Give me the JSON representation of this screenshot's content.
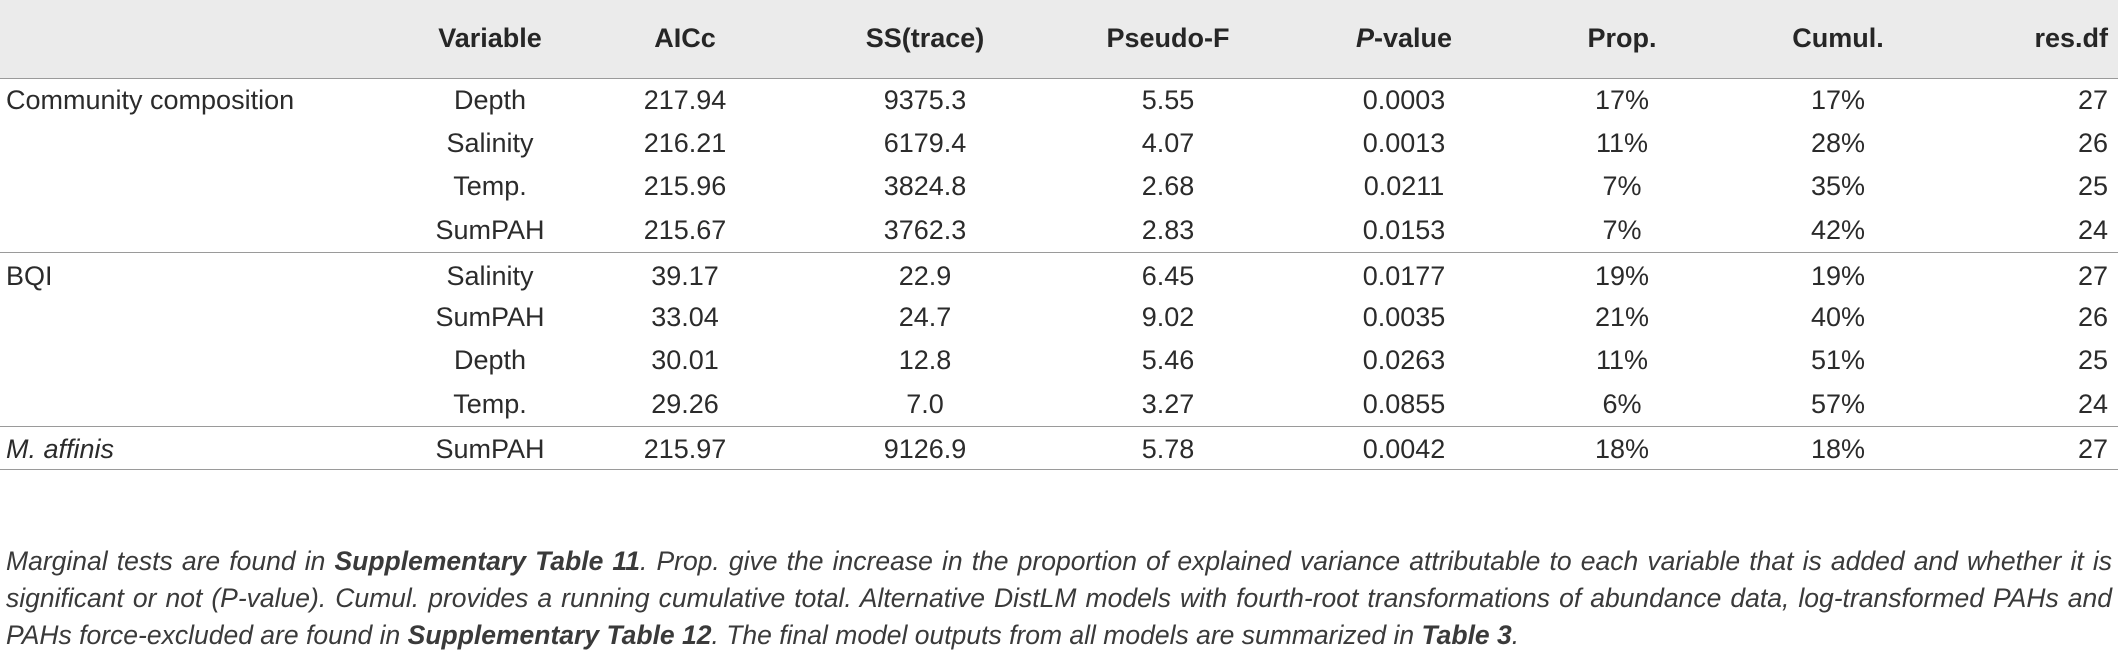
{
  "table": {
    "headers": {
      "group": "",
      "variable": "Variable",
      "aicc": "AICc",
      "ss": "SS(trace)",
      "pseudo_f": "Pseudo-F",
      "p_value_italic": "P",
      "p_value_rest": "-value",
      "prop": "Prop.",
      "cumul": "Cumul.",
      "res_df": "res.df"
    },
    "groups": [
      {
        "label": "Community composition",
        "rows": [
          {
            "variable": "Depth",
            "aicc": "217.94",
            "ss": "9375.3",
            "pseudo_f": "5.55",
            "p": "0.0003",
            "prop": "17%",
            "cumul": "17%",
            "res_df": "27"
          },
          {
            "variable": "Salinity",
            "aicc": "216.21",
            "ss": "6179.4",
            "pseudo_f": "4.07",
            "p": "0.0013",
            "prop": "11%",
            "cumul": "28%",
            "res_df": "26"
          },
          {
            "variable": "Temp.",
            "aicc": "215.96",
            "ss": "3824.8",
            "pseudo_f": "2.68",
            "p": "0.0211",
            "prop": "7%",
            "cumul": "35%",
            "res_df": "25"
          },
          {
            "variable": "SumPAH",
            "aicc": "215.67",
            "ss": "3762.3",
            "pseudo_f": "2.83",
            "p": "0.0153",
            "prop": "7%",
            "cumul": "42%",
            "res_df": "24"
          }
        ]
      },
      {
        "label": "BQI",
        "rows": [
          {
            "variable": "Salinity",
            "aicc": "39.17",
            "ss": "22.9",
            "pseudo_f": "6.45",
            "p": "0.0177",
            "prop": "19%",
            "cumul": "19%",
            "res_df": "27"
          },
          {
            "variable": "SumPAH",
            "aicc": "33.04",
            "ss": "24.7",
            "pseudo_f": "9.02",
            "p": "0.0035",
            "prop": "21%",
            "cumul": "40%",
            "res_df": "26"
          },
          {
            "variable": "Depth",
            "aicc": "30.01",
            "ss": "12.8",
            "pseudo_f": "5.46",
            "p": "0.0263",
            "prop": "11%",
            "cumul": "51%",
            "res_df": "25"
          },
          {
            "variable": "Temp.",
            "aicc": "29.26",
            "ss": "7.0",
            "pseudo_f": "3.27",
            "p": "0.0855",
            "prop": "6%",
            "cumul": "57%",
            "res_df": "24"
          }
        ]
      },
      {
        "label": "M. affinis",
        "rows": [
          {
            "variable": "SumPAH",
            "aicc": "215.97",
            "ss": "9126.9",
            "pseudo_f": "5.78",
            "p": "0.0042",
            "prop": "18%",
            "cumul": "18%",
            "res_df": "27"
          }
        ]
      }
    ]
  },
  "footnote": {
    "s1": "Marginal tests are found in ",
    "b1": "Supplementary Table 11",
    "s2": ". Prop. give the increase in the proportion of explained variance attributable to each variable that is added and whether it is significant or not (P-value). Cumul. provides a running cumulative total. Alternative DistLM models with fourth-root transformations of abundance data, log-transformed PAHs and PAHs force-excluded are found in ",
    "b2": "Supplementary Table 12",
    "s3": ". The final model outputs from all models are summarized in ",
    "b3": "Table 3",
    "s4": "."
  }
}
